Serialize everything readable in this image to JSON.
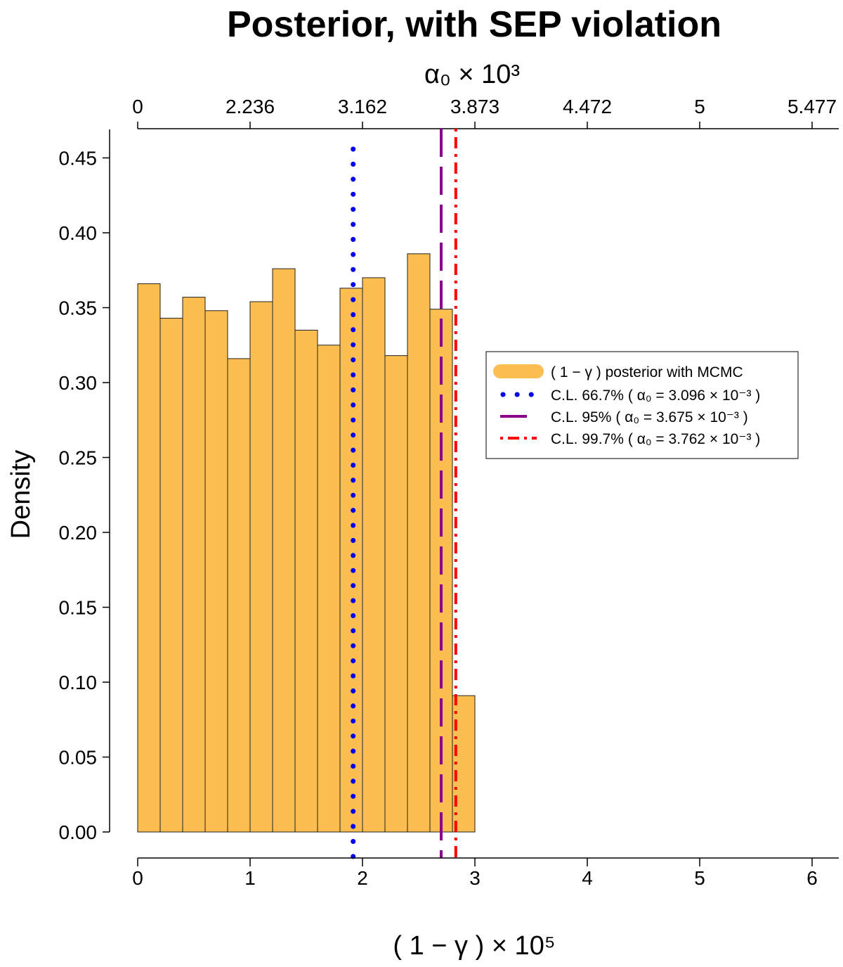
{
  "chart_data": {
    "type": "bar",
    "title": "Posterior, with SEP violation",
    "xlabel": "( 1 − γ ) × 10⁵",
    "ylabel": "Density",
    "top_axis_label": "α₀ × 10³",
    "xlim": [
      0,
      6.2
    ],
    "ylim": [
      0,
      0.47
    ],
    "x_ticks": [
      "0",
      "1",
      "2",
      "3",
      "4",
      "5",
      "6"
    ],
    "x_tick_values": [
      0,
      1,
      2,
      3,
      4,
      5,
      6
    ],
    "y_ticks": [
      "0.00",
      "0.05",
      "0.10",
      "0.15",
      "0.20",
      "0.25",
      "0.30",
      "0.35",
      "0.40",
      "0.45"
    ],
    "y_tick_values": [
      0,
      0.05,
      0.1,
      0.15,
      0.2,
      0.25,
      0.3,
      0.35,
      0.4,
      0.45
    ],
    "top_ticks": [
      "0",
      "2.236",
      "3.162",
      "3.873",
      "4.472",
      "5",
      "5.477"
    ],
    "top_tick_positions": [
      0,
      1,
      2,
      3,
      4,
      5,
      6
    ],
    "bin_width": 0.2,
    "bin_starts": [
      0,
      0.2,
      0.4,
      0.6,
      0.8,
      1.0,
      1.2,
      1.4,
      1.6,
      1.8,
      2.0,
      2.2,
      2.4,
      2.6,
      2.8
    ],
    "values": [
      0.366,
      0.343,
      0.357,
      0.348,
      0.316,
      0.354,
      0.376,
      0.335,
      0.325,
      0.363,
      0.37,
      0.318,
      0.386,
      0.349,
      0.091
    ],
    "bar_color": "#fcbe50",
    "vlines": [
      {
        "x": 1.917,
        "color": "#0000ee",
        "style": "dotted",
        "label": "C.L. 66.7%",
        "alpha_expr": "( α₀ = 3.096 × 10⁻³ )"
      },
      {
        "x": 2.7,
        "color": "#8b008b",
        "style": "dashed",
        "label": "C.L. 95%",
        "alpha_expr": "( α₀ = 3.675 × 10⁻³ )"
      },
      {
        "x": 2.83,
        "color": "#ff0000",
        "style": "dotdash",
        "label": "C.L. 99.7%",
        "alpha_expr": "( α₀ = 3.762 × 10⁻³ )"
      }
    ],
    "legend": {
      "placement": "center-right",
      "entries": [
        "( 1 − γ ) posterior with MCMC",
        "C.L. 66.7%",
        "C.L. 95%",
        "C.L. 99.7%"
      ]
    }
  }
}
